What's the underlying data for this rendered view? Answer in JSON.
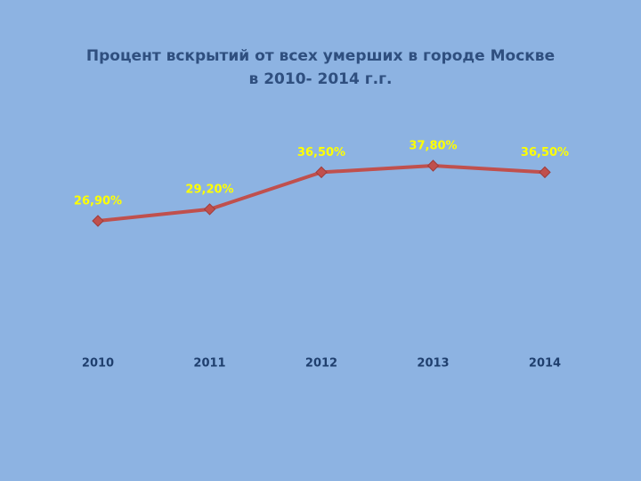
{
  "chart_data": {
    "type": "line",
    "title": "Процент вскрытий от всех умерших в городе Москве\nв 2010- 2014 г.г.",
    "categories": [
      "2010",
      "2011",
      "2012",
      "2013",
      "2014"
    ],
    "series": [
      {
        "color": "#c0504d",
        "values": [
          26.9,
          29.2,
          36.5,
          37.8,
          36.5
        ],
        "value_labels": [
          "26,90%",
          "29,20%",
          "36,50%",
          "37,80%",
          "36,50%"
        ]
      }
    ]
  }
}
